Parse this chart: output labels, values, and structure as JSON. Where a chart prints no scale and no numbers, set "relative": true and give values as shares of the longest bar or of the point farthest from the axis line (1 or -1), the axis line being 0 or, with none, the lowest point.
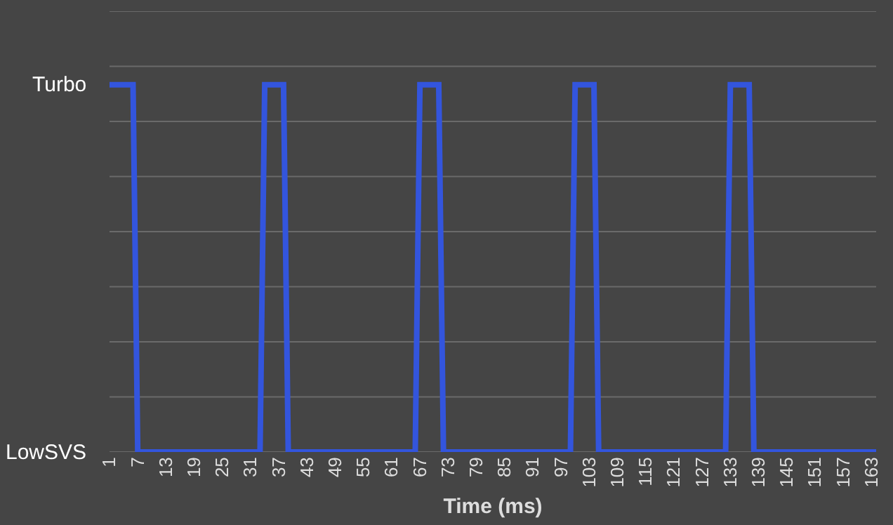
{
  "chart_data": {
    "type": "line",
    "xlabel": "Time (ms)",
    "x": [
      1,
      6,
      7,
      33,
      34,
      38,
      39,
      66,
      67,
      71,
      72,
      99,
      100,
      104,
      105,
      132,
      133,
      137,
      138,
      164
    ],
    "series": [
      {
        "color": "#3355dd",
        "values": [
          1,
          1,
          0,
          0,
          1,
          1,
          0,
          0,
          1,
          1,
          0,
          0,
          1,
          1,
          0,
          0,
          1,
          1,
          0,
          0
        ]
      }
    ],
    "xlim": [
      1,
      164
    ],
    "xticks": [
      1,
      7,
      13,
      19,
      25,
      31,
      37,
      43,
      49,
      55,
      61,
      67,
      73,
      79,
      85,
      91,
      97,
      103,
      109,
      115,
      121,
      127,
      133,
      139,
      145,
      151,
      157,
      163
    ],
    "relative": true,
    "annotations": [
      "Turbo",
      "LowSVS"
    ],
    "grid": "y",
    "marker": "none",
    "line_style": "solid"
  }
}
